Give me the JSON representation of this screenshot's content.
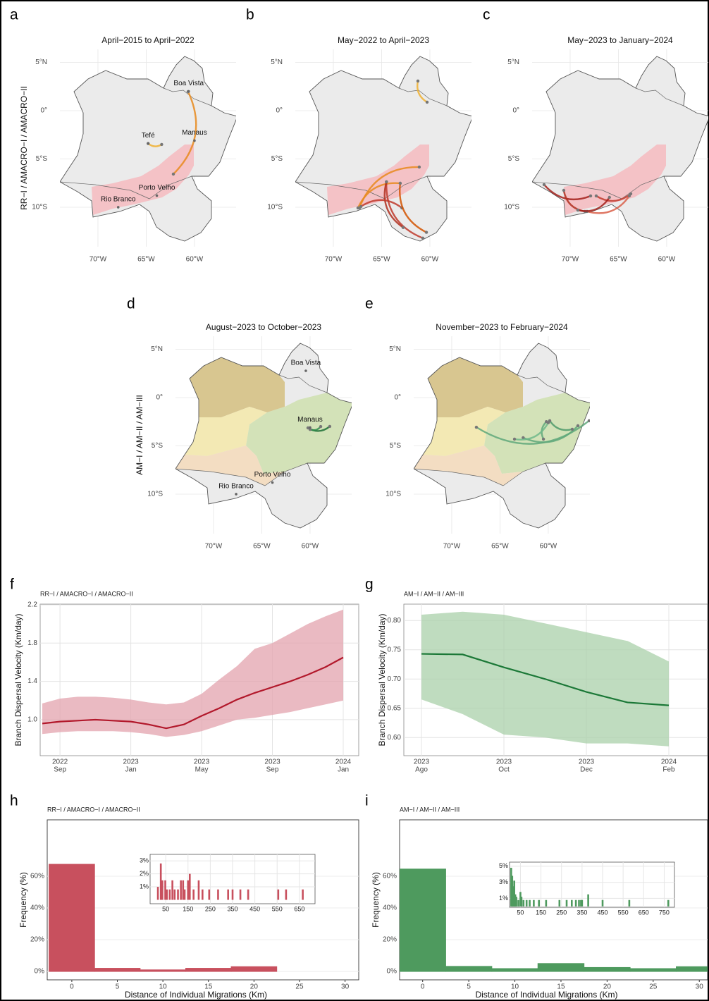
{
  "chart_data": [
    {
      "type": "map",
      "panel": "a",
      "title": "April−2015 to April−2022",
      "ylabel": "RR−I / AMACRO−I / AMACRO−II",
      "shading": "amacro",
      "xlim": [
        -73.94,
        -55.69
      ],
      "ylim": [
        -14.09,
        6.35
      ],
      "xticks": [
        {
          "value": -70,
          "label": "70°W"
        },
        {
          "value": -65,
          "label": "65°W"
        },
        {
          "value": -60,
          "label": "60°W"
        }
      ],
      "yticks": [
        {
          "value": 5,
          "label": "5°N"
        },
        {
          "value": 0,
          "label": "0°"
        },
        {
          "value": -5,
          "label": "5°S"
        },
        {
          "value": -10,
          "label": "10°S"
        }
      ],
      "cities": [
        {
          "name": "Boa Vista",
          "lon": -60.6,
          "lat": 2.0
        },
        {
          "name": "Manaus",
          "lon": -60.0,
          "lat": -3.1
        },
        {
          "name": "Tefé",
          "lon": -64.8,
          "lat": -3.4
        },
        {
          "name": "Porto Velho",
          "lon": -63.9,
          "lat": -8.8
        },
        {
          "name": "Rio Branco",
          "lon": -67.9,
          "lat": -10.0
        }
      ],
      "migrations": [
        {
          "x": [
            -62.19,
            -60.66
          ],
          "y": [
            -6.57,
            1.97
          ],
          "color": "#e8891c"
        },
        {
          "x": [
            -64.8,
            -63.4
          ],
          "y": [
            -3.4,
            -3.5
          ],
          "color": "#f0b030"
        }
      ]
    },
    {
      "type": "map",
      "panel": "b",
      "title": "May−2022 to April−2023",
      "shading": "amacro",
      "xlim": [
        -73.94,
        -55.69
      ],
      "ylim": [
        -14.09,
        6.35
      ],
      "xticks": [
        {
          "value": -70,
          "label": "70°W"
        },
        {
          "value": -65,
          "label": "65°W"
        },
        {
          "value": -60,
          "label": "60°W"
        }
      ],
      "yticks": [
        {
          "value": 5,
          "label": "5°N"
        },
        {
          "value": 0,
          "label": "0°"
        },
        {
          "value": -5,
          "label": "5°S"
        },
        {
          "value": -10,
          "label": "10°S"
        }
      ],
      "migrations": [
        {
          "x": [
            -61.24,
            -60.29
          ],
          "y": [
            3.07,
            0.88
          ],
          "color": "#f0b030"
        },
        {
          "x": [
            -61.1,
            -67.3
          ],
          "y": [
            -5.84,
            -10.07
          ],
          "color": "#e8891c"
        },
        {
          "x": [
            -63.07,
            -67.45
          ],
          "y": [
            -7.52,
            -10.07
          ],
          "color": "#e8891c"
        },
        {
          "x": [
            -64.5,
            -60.73
          ],
          "y": [
            -7.37,
            -13.2
          ],
          "color": "#c0392b"
        },
        {
          "x": [
            -64.5,
            -62.77
          ],
          "y": [
            -7.37,
            -12.1
          ],
          "color": "#b03020"
        },
        {
          "x": [
            -62.9,
            -67.15
          ],
          "y": [
            -10.07,
            -9.93
          ],
          "color": "#c0392b"
        },
        {
          "x": [
            -63.07,
            -60.36
          ],
          "y": [
            -7.52,
            -12.6
          ],
          "color": "#d35400"
        }
      ]
    },
    {
      "type": "map",
      "panel": "c",
      "title": "May−2023 to January−2024",
      "shading": "amacro",
      "xlim": [
        -73.94,
        -55.69
      ],
      "ylim": [
        -14.09,
        6.35
      ],
      "xticks": [
        {
          "value": -70,
          "label": "70°W"
        },
        {
          "value": -65,
          "label": "65°W"
        },
        {
          "value": -60,
          "label": "60°W"
        }
      ],
      "yticks": [
        {
          "value": 5,
          "label": "5°N"
        },
        {
          "value": 0,
          "label": "0°"
        },
        {
          "value": -5,
          "label": "5°S"
        },
        {
          "value": -10,
          "label": "10°S"
        }
      ],
      "migrations": [
        {
          "x": [
            -72.7,
            -67.88
          ],
          "y": [
            -7.66,
            -8.83
          ],
          "color": "#a3201a"
        },
        {
          "x": [
            -70.66,
            -68.47
          ],
          "y": [
            -8.25,
            -10.44
          ],
          "color": "#b03020"
        },
        {
          "x": [
            -67.3,
            -63.72
          ],
          "y": [
            -8.83,
            -8.61
          ],
          "color": "#c0392b"
        },
        {
          "x": [
            -68.25,
            -63.87
          ],
          "y": [
            -10.44,
            -8.83
          ],
          "color": "#d9604a"
        },
        {
          "x": [
            -69.2,
            -65.93
          ],
          "y": [
            -10.3,
            -8.98
          ],
          "color": "#a3201a"
        }
      ]
    },
    {
      "type": "map",
      "panel": "d",
      "title": "August−2023 to October−2023",
      "ylabel": "AM−I / AM−II / AM−III",
      "shading": "am",
      "xlim": [
        -73.94,
        -55.69
      ],
      "ylim": [
        -14.09,
        6.35
      ],
      "xticks": [
        {
          "value": -70,
          "label": "70°W"
        },
        {
          "value": -65,
          "label": "65°W"
        },
        {
          "value": -60,
          "label": "60°W"
        }
      ],
      "yticks": [
        {
          "value": 5,
          "label": "5°N"
        },
        {
          "value": 0,
          "label": "0°"
        },
        {
          "value": -5,
          "label": "5°S"
        },
        {
          "value": -10,
          "label": "10°S"
        }
      ],
      "cities": [
        {
          "name": "Boa Vista",
          "lon": -60.44,
          "lat": 2.77
        },
        {
          "name": "Manaus",
          "lon": -60.0,
          "lat": -3.1
        },
        {
          "name": "Porto Velho",
          "lon": -63.9,
          "lat": -8.8
        },
        {
          "name": "Rio Branco",
          "lon": -67.66,
          "lat": -10.0
        }
      ],
      "migrations": [
        {
          "x": [
            -60.22,
            -57.96
          ],
          "y": [
            -3.14,
            -2.99
          ],
          "color": "#1b6e35"
        },
        {
          "x": [
            -60.0,
            -58.9
          ],
          "y": [
            -3.3,
            -3.0
          ],
          "color": "#2e8b4a"
        }
      ]
    },
    {
      "type": "map",
      "panel": "e",
      "title": "November−2023 to February−2024",
      "shading": "am",
      "xlim": [
        -73.94,
        -55.69
      ],
      "ylim": [
        -14.09,
        6.35
      ],
      "xticks": [
        {
          "value": -70,
          "label": "70°W"
        },
        {
          "value": -65,
          "label": "65°W"
        },
        {
          "value": -60,
          "label": "60°W"
        }
      ],
      "yticks": [
        {
          "value": 5,
          "label": "5°N"
        },
        {
          "value": 0,
          "label": "0°"
        },
        {
          "value": -5,
          "label": "5°S"
        },
        {
          "value": -10,
          "label": "10°S"
        }
      ],
      "migrations": [
        {
          "x": [
            -67.45,
            -55.77
          ],
          "y": [
            -3.07,
            -2.4
          ],
          "color": "#5fa87a"
        },
        {
          "x": [
            -62.6,
            -56.93
          ],
          "y": [
            -4.16,
            -2.92
          ],
          "color": "#5fa87a"
        },
        {
          "x": [
            -59.85,
            -57.52
          ],
          "y": [
            -2.4,
            -3.28
          ],
          "color": "#4e9a6a"
        },
        {
          "x": [
            -60.2,
            -60.5
          ],
          "y": [
            -2.5,
            -4.3
          ],
          "color": "#5fa87a"
        },
        {
          "x": [
            -63.5,
            -60.0
          ],
          "y": [
            -4.3,
            -2.6
          ],
          "color": "#6fb88a"
        }
      ]
    },
    {
      "type": "line",
      "panel": "f",
      "title": "RR−I / AMACRO−I / AMACRO−II",
      "ylabel": "Branch Dispersal Velocity (Km/day)",
      "color": "#b2182b",
      "band_color": "#e3a3ad",
      "grid": true,
      "x": [
        "2022-08",
        "2022-09",
        "2022-10",
        "2022-11",
        "2022-12",
        "2023-01",
        "2023-02",
        "2023-03",
        "2023-04",
        "2023-05",
        "2023-06",
        "2023-07",
        "2023-08",
        "2023-09",
        "2023-10",
        "2023-11",
        "2023-12",
        "2024-01"
      ],
      "values": [
        0.96,
        0.98,
        0.99,
        1.0,
        0.99,
        0.98,
        0.95,
        0.91,
        0.95,
        1.04,
        1.12,
        1.21,
        1.28,
        1.34,
        1.4,
        1.47,
        1.55,
        1.65
      ],
      "lower": [
        0.85,
        0.87,
        0.88,
        0.88,
        0.88,
        0.87,
        0.85,
        0.82,
        0.84,
        0.88,
        0.94,
        1.0,
        1.02,
        1.05,
        1.08,
        1.12,
        1.16,
        1.2
      ],
      "upper": [
        1.17,
        1.22,
        1.24,
        1.24,
        1.23,
        1.21,
        1.18,
        1.16,
        1.18,
        1.27,
        1.42,
        1.56,
        1.74,
        1.8,
        1.9,
        2.0,
        2.08,
        2.15
      ],
      "xlim": [
        "2022-08",
        "2024-01"
      ],
      "xticks": [
        {
          "value": "2022-09",
          "label": [
            "2022",
            "Sep"
          ]
        },
        {
          "value": "2023-01",
          "label": [
            "2023",
            "Jan"
          ]
        },
        {
          "value": "2023-05",
          "label": [
            "2023",
            "May"
          ]
        },
        {
          "value": "2023-09",
          "label": [
            "2023",
            "Sep"
          ]
        },
        {
          "value": "2024-01",
          "label": [
            "2024",
            "Jan"
          ]
        }
      ],
      "ylim": [
        0.624,
        2.207
      ],
      "yticks": [
        {
          "value": 1.0,
          "label": "1.0"
        },
        1.4,
        1.8,
        2.2
      ]
    },
    {
      "type": "line",
      "panel": "g",
      "title": "AM−I / AM−II / AM−III",
      "ylabel": "Branch Dispersal Velocity (Km/day)",
      "color": "#1b7837",
      "band_color": "#a9d0a9",
      "grid": true,
      "x": [
        "2023-08",
        "2023-09",
        "2023-10",
        "2023-11",
        "2023-12",
        "2024-01",
        "2024-02"
      ],
      "values": [
        0.743,
        0.742,
        0.72,
        0.7,
        0.678,
        0.66,
        0.655
      ],
      "lower": [
        0.665,
        0.64,
        0.605,
        0.6,
        0.59,
        0.59,
        0.585
      ],
      "upper": [
        0.81,
        0.815,
        0.81,
        0.795,
        0.78,
        0.765,
        0.73
      ],
      "xlim": [
        "2023-08",
        "2024-02"
      ],
      "xticks": [
        {
          "value": "2023-08",
          "label": [
            "2023",
            "Ago"
          ]
        },
        {
          "value": "2023-10",
          "label": [
            "2023",
            "Oct"
          ]
        },
        {
          "value": "2023-12",
          "label": [
            "2023",
            "Dec"
          ]
        },
        {
          "value": "2024-02",
          "label": [
            "2024",
            "Feb"
          ]
        }
      ],
      "ylim": [
        0.569,
        0.828
      ],
      "yticks": [
        {
          "value": 0.6,
          "label": "0.60"
        },
        0.65,
        {
          "value": 0.7,
          "label": "0.70"
        },
        0.75,
        {
          "value": 0.8,
          "label": "0.80"
        }
      ]
    },
    {
      "type": "histogram",
      "panel": "h",
      "title": "RR−I / AMACRO−I / AMACRO−II",
      "ylabel": "Frequency (%)",
      "xlabel": "Distance of Individual Migrations (Km)",
      "color": "#c8505e",
      "bins": [
        -2.5,
        2.5,
        7.5,
        12.5,
        17.5,
        22.5,
        27.5,
        32.5
      ],
      "counts": [
        67.5,
        2,
        1,
        2,
        3,
        0,
        0
      ],
      "xlim": [
        -2.7,
        31.5
      ],
      "xticks": [
        0,
        5,
        10,
        15,
        20,
        25,
        30
      ],
      "ylim": [
        -5.3,
        95.5
      ],
      "yticks": [
        {
          "value": 0,
          "label": "0%"
        },
        {
          "value": 20,
          "label": "20%"
        },
        {
          "value": 40,
          "label": "40%"
        },
        {
          "value": 60,
          "label": "60%"
        }
      ],
      "inset": {
        "x": [
          15,
          28,
          35,
          48,
          55,
          68,
          80,
          90,
          105,
          118,
          128,
          135,
          150,
          158,
          175,
          198,
          215,
          245,
          285,
          330,
          350,
          385,
          420,
          555,
          590,
          665
        ],
        "values": [
          1,
          2.8,
          1.5,
          1.5,
          0.8,
          0.8,
          1.5,
          0.8,
          0.8,
          1.5,
          1.5,
          0.8,
          1.5,
          2,
          0.8,
          1.5,
          0.8,
          0.8,
          0.8,
          0.8,
          0.8,
          0.8,
          0.8,
          0.8,
          0.8,
          0.8
        ],
        "xlim": [
          -20,
          720
        ],
        "xticks": [
          50,
          150,
          250,
          350,
          450,
          550,
          650
        ],
        "ylim": [
          -0.3,
          3.5
        ],
        "yticks": [
          {
            "value": 1,
            "label": "1%"
          },
          {
            "value": 2,
            "label": "2%"
          },
          {
            "value": 3,
            "label": "3%"
          }
        ]
      }
    },
    {
      "type": "histogram",
      "panel": "i",
      "title": "AM−I / AM−II / AM−III",
      "ylabel": "Frequency (%)",
      "xlabel": "Distance of Individual Migrations (Km)",
      "color": "#4e9a5e",
      "bins": [
        -2.5,
        2.5,
        7.5,
        12.5,
        17.5,
        22.5,
        27.5,
        32.5
      ],
      "counts": [
        64.5,
        3.2,
        1.8,
        5,
        2.5,
        1.8,
        3
      ],
      "xlim": [
        -2.5,
        30.9
      ],
      "xticks": [
        0,
        5,
        10,
        15,
        20,
        25,
        30
      ],
      "ylim": [
        -5.3,
        95.5
      ],
      "yticks": [
        {
          "value": 0,
          "label": "0%"
        },
        {
          "value": 20,
          "label": "20%"
        },
        {
          "value": 40,
          "label": "40%"
        },
        {
          "value": 60,
          "label": "60%"
        }
      ],
      "inset": {
        "x": [
          5,
          10,
          15,
          20,
          25,
          30,
          40,
          50,
          55,
          65,
          80,
          95,
          115,
          140,
          175,
          240,
          275,
          300,
          320,
          335,
          345,
          350,
          380,
          450,
          580,
          770
        ],
        "values": [
          4.8,
          3.8,
          2.5,
          3.2,
          1.5,
          1.2,
          0.8,
          1.8,
          1.2,
          0.8,
          0.8,
          0.8,
          0.8,
          0.8,
          0.8,
          0.8,
          0.8,
          0.8,
          0.8,
          0.8,
          0.8,
          0.8,
          1.5,
          0.8,
          0.8,
          0.8
        ],
        "xlim": [
          -3,
          800
        ],
        "xticks": [
          50,
          150,
          250,
          350,
          450,
          550,
          650,
          750
        ],
        "ylim": [
          -0.1,
          5.5
        ],
        "yticks": [
          {
            "value": 1,
            "label": "1%"
          },
          {
            "value": 3,
            "label": "3%"
          },
          {
            "value": 5,
            "label": "5%"
          }
        ]
      }
    }
  ]
}
